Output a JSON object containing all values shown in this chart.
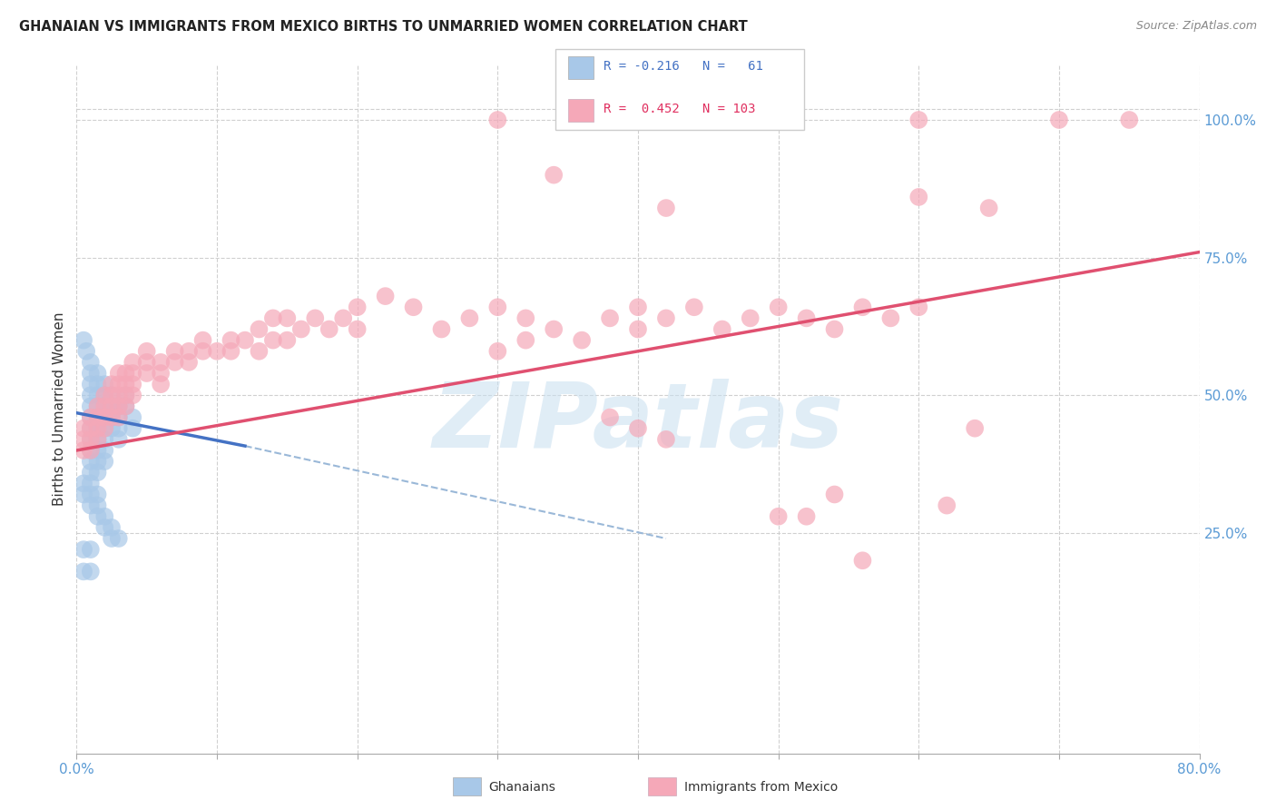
{
  "title": "GHANAIAN VS IMMIGRANTS FROM MEXICO BIRTHS TO UNMARRIED WOMEN CORRELATION CHART",
  "source": "Source: ZipAtlas.com",
  "ylabel": "Births to Unmarried Women",
  "xlim": [
    0.0,
    0.8
  ],
  "ylim": [
    -0.15,
    1.1
  ],
  "x_ticks": [
    0.0,
    0.1,
    0.2,
    0.3,
    0.4,
    0.5,
    0.6,
    0.7,
    0.8
  ],
  "y_ticks_right": [
    0.25,
    0.5,
    0.75,
    1.0
  ],
  "y_tick_labels_right": [
    "25.0%",
    "50.0%",
    "75.0%",
    "100.0%"
  ],
  "ghanaian_color": "#a8c8e8",
  "mexico_color": "#f5a8b8",
  "ghanaian_trend_color": "#4472c4",
  "mexico_trend_color": "#e05070",
  "background_color": "#ffffff",
  "grid_color": "#d0d0d0",
  "watermark": "ZIPatlas",
  "ghanaian_points": [
    [
      0.005,
      0.6
    ],
    [
      0.007,
      0.58
    ],
    [
      0.01,
      0.56
    ],
    [
      0.01,
      0.54
    ],
    [
      0.01,
      0.52
    ],
    [
      0.01,
      0.5
    ],
    [
      0.01,
      0.48
    ],
    [
      0.01,
      0.46
    ],
    [
      0.01,
      0.44
    ],
    [
      0.01,
      0.42
    ],
    [
      0.01,
      0.4
    ],
    [
      0.01,
      0.38
    ],
    [
      0.01,
      0.36
    ],
    [
      0.015,
      0.54
    ],
    [
      0.015,
      0.52
    ],
    [
      0.015,
      0.5
    ],
    [
      0.015,
      0.48
    ],
    [
      0.015,
      0.46
    ],
    [
      0.015,
      0.44
    ],
    [
      0.015,
      0.42
    ],
    [
      0.015,
      0.4
    ],
    [
      0.015,
      0.38
    ],
    [
      0.015,
      0.36
    ],
    [
      0.02,
      0.52
    ],
    [
      0.02,
      0.5
    ],
    [
      0.02,
      0.48
    ],
    [
      0.02,
      0.46
    ],
    [
      0.02,
      0.44
    ],
    [
      0.02,
      0.42
    ],
    [
      0.02,
      0.4
    ],
    [
      0.02,
      0.38
    ],
    [
      0.025,
      0.5
    ],
    [
      0.025,
      0.48
    ],
    [
      0.025,
      0.46
    ],
    [
      0.025,
      0.44
    ],
    [
      0.03,
      0.48
    ],
    [
      0.03,
      0.46
    ],
    [
      0.03,
      0.44
    ],
    [
      0.03,
      0.42
    ],
    [
      0.035,
      0.5
    ],
    [
      0.035,
      0.48
    ],
    [
      0.04,
      0.46
    ],
    [
      0.04,
      0.44
    ],
    [
      0.005,
      0.34
    ],
    [
      0.005,
      0.32
    ],
    [
      0.01,
      0.34
    ],
    [
      0.01,
      0.32
    ],
    [
      0.01,
      0.3
    ],
    [
      0.015,
      0.32
    ],
    [
      0.015,
      0.3
    ],
    [
      0.015,
      0.28
    ],
    [
      0.02,
      0.28
    ],
    [
      0.02,
      0.26
    ],
    [
      0.025,
      0.26
    ],
    [
      0.025,
      0.24
    ],
    [
      0.03,
      0.24
    ],
    [
      0.005,
      0.22
    ],
    [
      0.005,
      0.18
    ],
    [
      0.01,
      0.22
    ],
    [
      0.01,
      0.18
    ]
  ],
  "mexico_points": [
    [
      0.005,
      0.44
    ],
    [
      0.005,
      0.42
    ],
    [
      0.005,
      0.4
    ],
    [
      0.01,
      0.46
    ],
    [
      0.01,
      0.44
    ],
    [
      0.01,
      0.42
    ],
    [
      0.01,
      0.4
    ],
    [
      0.015,
      0.48
    ],
    [
      0.015,
      0.46
    ],
    [
      0.015,
      0.44
    ],
    [
      0.015,
      0.42
    ],
    [
      0.02,
      0.5
    ],
    [
      0.02,
      0.48
    ],
    [
      0.02,
      0.46
    ],
    [
      0.02,
      0.44
    ],
    [
      0.025,
      0.52
    ],
    [
      0.025,
      0.5
    ],
    [
      0.025,
      0.48
    ],
    [
      0.025,
      0.46
    ],
    [
      0.03,
      0.54
    ],
    [
      0.03,
      0.52
    ],
    [
      0.03,
      0.5
    ],
    [
      0.03,
      0.48
    ],
    [
      0.03,
      0.46
    ],
    [
      0.035,
      0.54
    ],
    [
      0.035,
      0.52
    ],
    [
      0.035,
      0.5
    ],
    [
      0.035,
      0.48
    ],
    [
      0.04,
      0.56
    ],
    [
      0.04,
      0.54
    ],
    [
      0.04,
      0.52
    ],
    [
      0.04,
      0.5
    ],
    [
      0.05,
      0.58
    ],
    [
      0.05,
      0.56
    ],
    [
      0.05,
      0.54
    ],
    [
      0.06,
      0.56
    ],
    [
      0.06,
      0.54
    ],
    [
      0.06,
      0.52
    ],
    [
      0.07,
      0.58
    ],
    [
      0.07,
      0.56
    ],
    [
      0.08,
      0.58
    ],
    [
      0.08,
      0.56
    ],
    [
      0.09,
      0.6
    ],
    [
      0.09,
      0.58
    ],
    [
      0.1,
      0.58
    ],
    [
      0.11,
      0.6
    ],
    [
      0.11,
      0.58
    ],
    [
      0.12,
      0.6
    ],
    [
      0.13,
      0.62
    ],
    [
      0.13,
      0.58
    ],
    [
      0.14,
      0.64
    ],
    [
      0.14,
      0.6
    ],
    [
      0.15,
      0.64
    ],
    [
      0.15,
      0.6
    ],
    [
      0.16,
      0.62
    ],
    [
      0.17,
      0.64
    ],
    [
      0.18,
      0.62
    ],
    [
      0.19,
      0.64
    ],
    [
      0.2,
      0.66
    ],
    [
      0.2,
      0.62
    ],
    [
      0.22,
      0.68
    ],
    [
      0.24,
      0.66
    ],
    [
      0.26,
      0.62
    ],
    [
      0.28,
      0.64
    ],
    [
      0.3,
      0.66
    ],
    [
      0.3,
      0.58
    ],
    [
      0.32,
      0.64
    ],
    [
      0.32,
      0.6
    ],
    [
      0.34,
      0.62
    ],
    [
      0.36,
      0.6
    ],
    [
      0.38,
      0.64
    ],
    [
      0.4,
      0.66
    ],
    [
      0.4,
      0.62
    ],
    [
      0.42,
      0.64
    ],
    [
      0.44,
      0.66
    ],
    [
      0.46,
      0.62
    ],
    [
      0.48,
      0.64
    ],
    [
      0.5,
      0.66
    ],
    [
      0.52,
      0.64
    ],
    [
      0.54,
      0.62
    ],
    [
      0.56,
      0.66
    ],
    [
      0.58,
      0.64
    ],
    [
      0.6,
      0.66
    ],
    [
      0.38,
      0.46
    ],
    [
      0.4,
      0.44
    ],
    [
      0.42,
      0.42
    ],
    [
      0.5,
      0.28
    ],
    [
      0.52,
      0.28
    ],
    [
      0.54,
      0.32
    ],
    [
      0.56,
      0.2
    ],
    [
      0.62,
      0.3
    ],
    [
      0.64,
      0.44
    ],
    [
      0.3,
      1.0
    ],
    [
      0.4,
      1.0
    ],
    [
      0.5,
      1.0
    ],
    [
      0.6,
      1.0
    ],
    [
      0.7,
      1.0
    ],
    [
      0.75,
      1.0
    ],
    [
      0.34,
      0.9
    ],
    [
      0.42,
      0.84
    ],
    [
      0.6,
      0.86
    ],
    [
      0.65,
      0.84
    ]
  ],
  "ghanaian_trend": {
    "x_start": 0.0,
    "x_end": 0.12,
    "y_start": 0.468,
    "y_end": 0.408
  },
  "ghanaian_trend_dashed": {
    "x_start": 0.12,
    "x_end": 0.42,
    "y_start": 0.408,
    "y_end": 0.24
  },
  "mexico_trend": {
    "x_start": 0.0,
    "x_end": 0.8,
    "y_start": 0.4,
    "y_end": 0.76
  },
  "dashed_line_color": "#9ab8d8"
}
